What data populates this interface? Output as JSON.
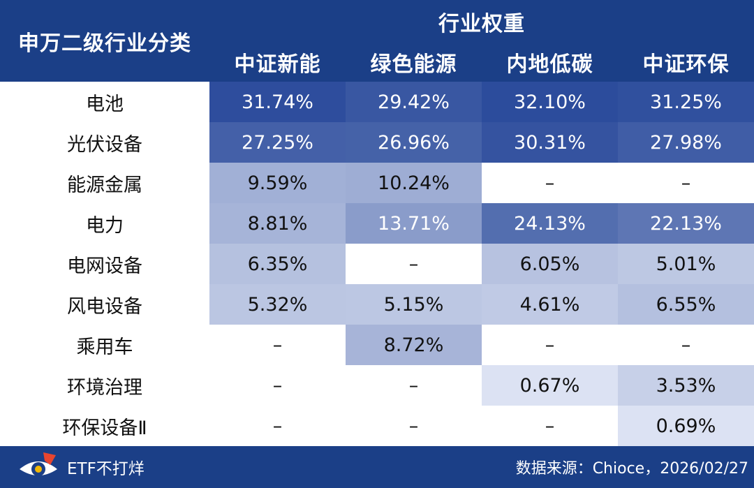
{
  "header": {
    "corner_label": "申万二级行业分类",
    "group_label": "行业权重",
    "columns": [
      "中证新能",
      "绿色能源",
      "内地低碳",
      "中证环保"
    ]
  },
  "rows": [
    {
      "label": "电池",
      "values": [
        "31.74%",
        "29.42%",
        "32.10%",
        "31.25%"
      ]
    },
    {
      "label": "光伏设备",
      "values": [
        "27.25%",
        "26.96%",
        "30.31%",
        "27.98%"
      ]
    },
    {
      "label": "能源金属",
      "values": [
        "9.59%",
        "10.24%",
        "–",
        "–"
      ]
    },
    {
      "label": "电力",
      "values": [
        "8.81%",
        "13.71%",
        "24.13%",
        "22.13%"
      ]
    },
    {
      "label": "电网设备",
      "values": [
        "6.35%",
        "–",
        "6.05%",
        "5.01%"
      ]
    },
    {
      "label": "风电设备",
      "values": [
        "5.32%",
        "5.15%",
        "4.61%",
        "6.55%"
      ]
    },
    {
      "label": "乘用车",
      "values": [
        "–",
        "8.72%",
        "–",
        "–"
      ]
    },
    {
      "label": "环境治理",
      "values": [
        "–",
        "–",
        "0.67%",
        "3.53%"
      ]
    },
    {
      "label": "环保设备Ⅱ",
      "values": [
        "–",
        "–",
        "–",
        "0.69%"
      ]
    }
  ],
  "footer": {
    "brand": "ETF不打烊",
    "source": "数据来源：Chioce，2026/02/27"
  },
  "colors": {
    "header_bg": "#1b3f87",
    "heat_max": "#2c4c9c",
    "heat_min": "#e3e8f6",
    "empty": "#ffffff"
  }
}
